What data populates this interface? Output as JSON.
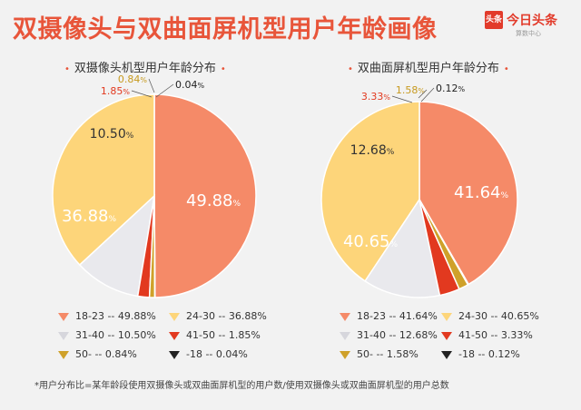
{
  "title": "双摄像头与双曲面屏机型用户年龄画像",
  "logo": {
    "mark": "头条",
    "name": "今日头条",
    "sub": "算数中心"
  },
  "footnote": "*用户分布比=某年龄段使用双摄像头或双曲面屏机型的用户数/使用双摄像头或双曲面屏机型的用户总数",
  "colors": {
    "18-23": "#f58a68",
    "24-30": "#fdd57a",
    "31-40": "#e9e9ed",
    "41-50": "#e2391f",
    "50-": "#cfa12a",
    "-18": "#222222"
  },
  "chart_data": [
    {
      "type": "pie",
      "title": "双摄像头机型用户年龄分布",
      "categories": [
        "18-23",
        "24-30",
        "31-40",
        "41-50",
        "50-",
        "-18"
      ],
      "values": [
        49.88,
        36.88,
        10.5,
        1.85,
        0.84,
        0.04
      ],
      "labels": [
        "49.88",
        "36.88",
        "10.50",
        "1.85",
        "0.84",
        "0.04"
      ],
      "legend": [
        "18-23 -- 49.88%",
        "24-30 -- 36.88%",
        "31-40 -- 10.50%",
        "41-50 -- 1.85%",
        "50- -- 0.84%",
        "-18 -- 0.04%"
      ]
    },
    {
      "type": "pie",
      "title": "双曲面屏机型用户年龄分布",
      "categories": [
        "18-23",
        "24-30",
        "31-40",
        "41-50",
        "50-",
        "-18"
      ],
      "values": [
        41.64,
        40.65,
        12.68,
        3.33,
        1.58,
        0.12
      ],
      "labels": [
        "41.64",
        "40.65",
        "12.68",
        "3.33",
        "1.58",
        "0.12"
      ],
      "legend": [
        "18-23 -- 41.64%",
        "24-30 -- 40.65%",
        "31-40 -- 12.68%",
        "41-50 -- 3.33%",
        "50- -- 1.58%",
        "-18 -- 0.12%"
      ]
    }
  ]
}
